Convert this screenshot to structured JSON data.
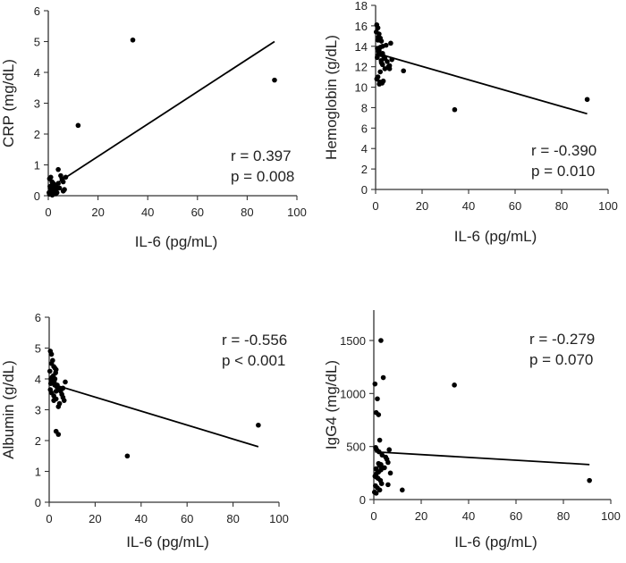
{
  "chart_data": [
    {
      "type": "scatter",
      "id": "crp",
      "xlabel": "IL-6 (pg/mL)",
      "ylabel": "CRP (mg/dL)",
      "xlim": [
        0,
        100
      ],
      "ylim": [
        0,
        6
      ],
      "xticks": [
        0,
        20,
        40,
        60,
        80,
        100
      ],
      "yticks": [
        0,
        1,
        2,
        3,
        4,
        5,
        6
      ],
      "annotations": [
        "r = 0.397",
        "p = 0.008"
      ],
      "regression": {
        "x": [
          0.5,
          91
        ],
        "y": [
          0.25,
          5.0
        ]
      },
      "series": [
        {
          "x": [
            34,
            91,
            12,
            0.5,
            1,
            1.5,
            2,
            2.5,
            3,
            0.8,
            1.2,
            2.2,
            3.5,
            4,
            5,
            5.5,
            6,
            6.5,
            4.5,
            3,
            2,
            1,
            0.5,
            1.8,
            2.8,
            3.3,
            0.7,
            1.5,
            2.5,
            0.3,
            1,
            2,
            3,
            4,
            7,
            6,
            1.2,
            2.4,
            0.9,
            1.6
          ],
          "y": [
            5.05,
            3.75,
            2.28,
            0.55,
            0.6,
            0.45,
            0.4,
            0.35,
            0.3,
            0.25,
            0.2,
            0.15,
            0.1,
            0.85,
            0.65,
            0.55,
            0.45,
            0.2,
            0.25,
            0.15,
            0.1,
            0.08,
            0.05,
            0.12,
            0.18,
            0.22,
            0.3,
            0.35,
            0.07,
            0.1,
            0.12,
            0.05,
            0.06,
            0.4,
            0.6,
            0.15,
            0.28,
            0.2,
            0.1,
            0.02
          ]
        }
      ]
    },
    {
      "type": "scatter",
      "id": "hemoglobin",
      "xlabel": "IL-6 (pg/mL)",
      "ylabel": "Hemoglobin (g/dL)",
      "xlim": [
        0,
        100
      ],
      "ylim": [
        0,
        18
      ],
      "xticks": [
        0,
        20,
        40,
        60,
        80,
        100
      ],
      "yticks": [
        0,
        2,
        4,
        6,
        8,
        10,
        12,
        14,
        16,
        18
      ],
      "annotations": [
        "r = -0.390",
        "p = 0.010"
      ],
      "regression": {
        "x": [
          0.5,
          91
        ],
        "y": [
          13.3,
          7.4
        ]
      },
      "series": [
        {
          "x": [
            34,
            91,
            12,
            0.5,
            1,
            1.5,
            2,
            2.5,
            3,
            0.8,
            1.2,
            2.2,
            3.5,
            4,
            5,
            5.5,
            6,
            6.5,
            4.5,
            3,
            2,
            1,
            0.5,
            1.8,
            2.8,
            3.3,
            0.7,
            1.5,
            2.5,
            0.3,
            1,
            2,
            3,
            4,
            7,
            6,
            1.2,
            2.4,
            0.9,
            1.6
          ],
          "y": [
            7.8,
            8.8,
            11.6,
            16.1,
            15.8,
            15.2,
            14.8,
            14.5,
            14.0,
            13.8,
            13.5,
            13.2,
            13.0,
            12.8,
            12.5,
            12.0,
            11.8,
            14.3,
            14.1,
            12.2,
            11.5,
            11.0,
            10.8,
            10.5,
            10.4,
            10.6,
            12.9,
            13.6,
            12.4,
            15.4,
            14.6,
            13.9,
            13.3,
            11.8,
            12.7,
            12.1,
            14.9,
            12.6,
            13.1,
            10.3
          ]
        }
      ]
    },
    {
      "type": "scatter",
      "id": "albumin",
      "xlabel": "IL-6 (pg/mL)",
      "ylabel": "Albumin (g/dL)",
      "xlim": [
        0,
        100
      ],
      "ylim": [
        0,
        6
      ],
      "xticks": [
        0,
        20,
        40,
        60,
        80,
        100
      ],
      "yticks": [
        0,
        1,
        2,
        3,
        4,
        5,
        6
      ],
      "annotations": [
        "r = -0.556",
        "p < 0.001"
      ],
      "regression": {
        "x": [
          0.5,
          91
        ],
        "y": [
          3.85,
          1.8
        ]
      },
      "series": [
        {
          "x": [
            34,
            91,
            3,
            4,
            0.5,
            1,
            1.5,
            2,
            2.5,
            3,
            0.8,
            1.2,
            2.2,
            3.5,
            4,
            5,
            5.5,
            6,
            6.5,
            4.5,
            3,
            2,
            1,
            0.5,
            1.8,
            2.8,
            3.3,
            0.7,
            1.5,
            2.5,
            0.3,
            1,
            2,
            3,
            4,
            7,
            6,
            1.2,
            2.4,
            0.9
          ],
          "y": [
            1.5,
            2.5,
            2.3,
            2.2,
            4.9,
            4.8,
            4.6,
            4.4,
            4.35,
            4.3,
            4.0,
            3.95,
            3.9,
            3.8,
            3.7,
            3.6,
            3.5,
            3.4,
            3.3,
            3.2,
            3.35,
            3.45,
            3.55,
            3.65,
            4.1,
            4.2,
            3.75,
            3.85,
            3.9,
            4.0,
            4.25,
            4.5,
            3.3,
            3.6,
            3.1,
            3.9,
            3.7,
            4.05,
            3.8,
            3.95
          ]
        }
      ]
    },
    {
      "type": "scatter",
      "id": "igg4",
      "xlabel": "IL-6 (pg/mL)",
      "ylabel": "IgG4 (mg/dL)",
      "xlim": [
        0,
        100
      ],
      "ylim": [
        0,
        1750
      ],
      "xticks": [
        0,
        20,
        40,
        60,
        80,
        100
      ],
      "yticks": [
        0,
        500,
        1000,
        1500
      ],
      "annotations": [
        "r = -0.279",
        "p = 0.070"
      ],
      "regression": {
        "x": [
          0.5,
          91
        ],
        "y": [
          450,
          330
        ]
      },
      "series": [
        {
          "x": [
            34,
            91,
            12,
            0.5,
            1,
            1.5,
            2,
            2.5,
            3,
            0.8,
            1.2,
            2.2,
            3.5,
            4,
            5,
            5.5,
            6,
            6.5,
            4.5,
            3,
            2,
            1,
            0.5,
            1.8,
            2.8,
            3.3,
            0.7,
            1.5,
            2.5,
            0.3,
            1,
            2,
            3,
            4,
            7,
            6,
            1.2,
            2.4,
            0.9,
            1.6
          ],
          "y": [
            1080,
            180,
            90,
            1090,
            820,
            950,
            800,
            560,
            1500,
            490,
            470,
            450,
            420,
            1150,
            400,
            380,
            350,
            470,
            300,
            280,
            260,
            240,
            220,
            200,
            180,
            150,
            130,
            110,
            90,
            70,
            60,
            340,
            330,
            300,
            250,
            140,
            210,
            320,
            290,
            260
          ]
        }
      ]
    }
  ]
}
